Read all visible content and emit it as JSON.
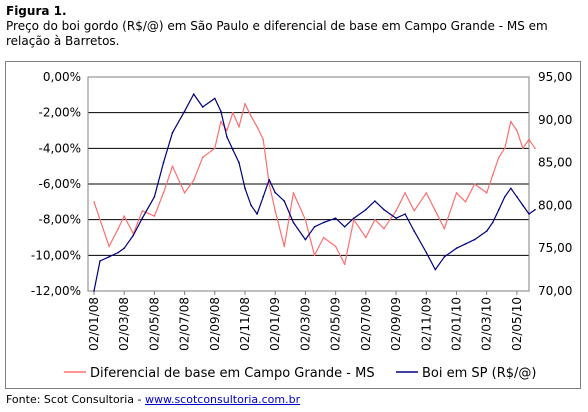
{
  "figure": {
    "label": "Figura 1.",
    "description": "Preço do boi gordo (R$/@) em São Paulo e diferencial de base em Campo Grande - MS em relação à Barretos."
  },
  "source": {
    "prefix": "Fonte: Scot Consultoria - ",
    "link_text": "www.scotconsultoria.com.br"
  },
  "colors": {
    "diferencial": "#ff6f6f",
    "boi": "#000080",
    "grid": "#000000",
    "frame": "#7f7f7f"
  },
  "chart_data": {
    "type": "line",
    "title": "",
    "y_left": {
      "lim": [
        -12,
        0
      ],
      "ticks": [
        "0,00%",
        "-2,00%",
        "-4,00%",
        "-6,00%",
        "-8,00%",
        "-10,00%",
        "-12,00%"
      ]
    },
    "y_right": {
      "lim": [
        70,
        95
      ],
      "ticks": [
        "95,00",
        "90,00",
        "85,00",
        "80,00",
        "75,00",
        "70,00"
      ]
    },
    "x_ticks": [
      "02/01/08",
      "02/03/08",
      "02/05/08",
      "02/07/08",
      "02/09/08",
      "02/11/08",
      "02/01/09",
      "02/03/09",
      "02/05/09",
      "02/07/09",
      "02/09/09",
      "02/11/09",
      "02/01/10",
      "02/03/10",
      "02/05/10"
    ],
    "grid": "horizontal",
    "legend_position": "bottom",
    "series": [
      {
        "name": "Diferencial de base em Campo Grande - MS",
        "axis": "left",
        "x": [
          0.0,
          0.2,
          0.5,
          0.8,
          1.0,
          1.3,
          1.6,
          2.0,
          2.3,
          2.6,
          3.0,
          3.3,
          3.6,
          4.0,
          4.2,
          4.4,
          4.6,
          4.8,
          5.0,
          5.2,
          5.4,
          5.6,
          5.8,
          6.0,
          6.3,
          6.6,
          7.0,
          7.3,
          7.6,
          8.0,
          8.3,
          8.6,
          9.0,
          9.3,
          9.6,
          10.0,
          10.3,
          10.6,
          11.0,
          11.3,
          11.6,
          12.0,
          12.3,
          12.6,
          13.0,
          13.2,
          13.4,
          13.6,
          13.8,
          14.0,
          14.2,
          14.4,
          14.6
        ],
        "values": [
          -7.0,
          -8.0,
          -9.5,
          -8.5,
          -7.8,
          -8.8,
          -7.5,
          -7.8,
          -6.5,
          -5.0,
          -6.5,
          -5.8,
          -4.5,
          -4.0,
          -2.5,
          -3.0,
          -2.0,
          -2.8,
          -1.5,
          -2.2,
          -2.8,
          -3.5,
          -6.0,
          -7.5,
          -9.5,
          -6.5,
          -8.0,
          -10.0,
          -9.0,
          -9.5,
          -10.5,
          -8.0,
          -9.0,
          -8.0,
          -8.5,
          -7.5,
          -6.5,
          -7.5,
          -6.5,
          -7.5,
          -8.5,
          -6.5,
          -7.0,
          -6.0,
          -6.5,
          -5.5,
          -4.5,
          -4.0,
          -2.5,
          -3.0,
          -4.0,
          -3.5,
          -4.0
        ]
      },
      {
        "name": "Boi em SP (R$/@)",
        "axis": "right",
        "x": [
          0.0,
          0.2,
          0.5,
          0.8,
          1.0,
          1.3,
          1.6,
          2.0,
          2.3,
          2.6,
          3.0,
          3.3,
          3.6,
          4.0,
          4.2,
          4.4,
          4.6,
          4.8,
          5.0,
          5.2,
          5.4,
          5.6,
          5.8,
          6.0,
          6.3,
          6.6,
          7.0,
          7.3,
          7.6,
          8.0,
          8.3,
          8.6,
          9.0,
          9.3,
          9.6,
          10.0,
          10.3,
          10.6,
          11.0,
          11.3,
          11.6,
          12.0,
          12.3,
          12.6,
          13.0,
          13.2,
          13.4,
          13.6,
          13.8,
          14.0,
          14.2,
          14.4,
          14.6
        ],
        "values": [
          70.0,
          73.5,
          74.0,
          74.5,
          75.0,
          76.5,
          78.5,
          81.0,
          85.0,
          88.5,
          91.0,
          93.0,
          91.5,
          92.5,
          91.0,
          88.0,
          86.5,
          85.0,
          82.0,
          80.0,
          79.0,
          81.0,
          83.0,
          81.5,
          80.5,
          78.0,
          76.0,
          77.5,
          78.0,
          78.5,
          77.5,
          78.5,
          79.5,
          80.5,
          79.5,
          78.5,
          79.0,
          77.0,
          74.5,
          72.5,
          74.0,
          75.0,
          75.5,
          76.0,
          77.0,
          78.0,
          79.5,
          81.0,
          82.0,
          81.0,
          80.0,
          79.0,
          79.5
        ]
      }
    ]
  }
}
